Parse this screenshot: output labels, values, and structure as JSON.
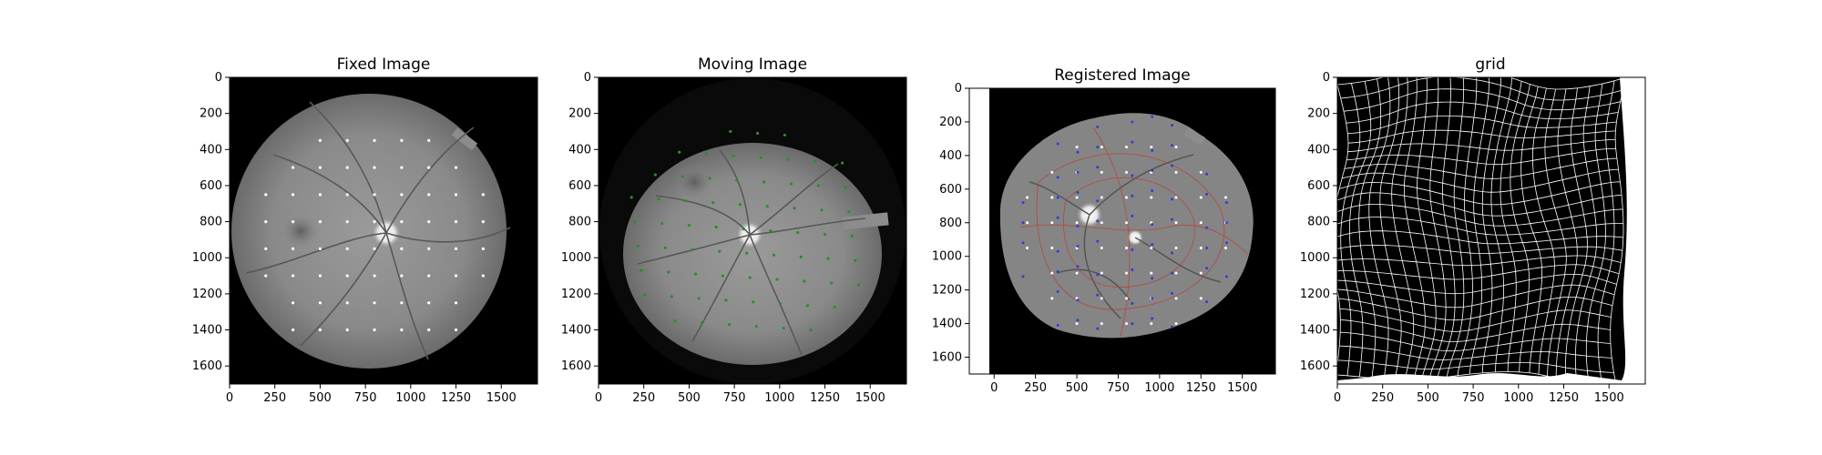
{
  "panels": [
    {
      "title": "Fixed Image",
      "xticks": [
        "0",
        "250",
        "500",
        "750",
        "1000",
        "1250",
        "1500"
      ],
      "yticks": [
        "0",
        "200",
        "400",
        "600",
        "800",
        "1000",
        "1200",
        "1400",
        "1600"
      ],
      "marker_color": "#ffffff"
    },
    {
      "title": "Moving Image",
      "xticks": [
        "0",
        "250",
        "500",
        "750",
        "1000",
        "1250",
        "1500"
      ],
      "yticks": [
        "0",
        "200",
        "400",
        "600",
        "800",
        "1000",
        "1200",
        "1400",
        "1600"
      ],
      "marker_color": "#2e8b2e"
    },
    {
      "title": "Registered Image",
      "xticks": [
        "0",
        "250",
        "500",
        "750",
        "1000",
        "1250",
        "1500"
      ],
      "yticks": [
        "0",
        "200",
        "400",
        "600",
        "800",
        "1000",
        "1200",
        "1400",
        "1600"
      ],
      "marker_color": "#ffffff",
      "secondary_marker_color": "#2d3fd6",
      "contour_color": "#c0392b"
    },
    {
      "title": "grid",
      "xticks": [
        "0",
        "250",
        "500",
        "750",
        "1000",
        "1250",
        "1500"
      ],
      "yticks": [
        "0",
        "200",
        "400",
        "600",
        "800",
        "1000",
        "1200",
        "1400",
        "1600"
      ],
      "line_color": "#ffffff"
    }
  ]
}
